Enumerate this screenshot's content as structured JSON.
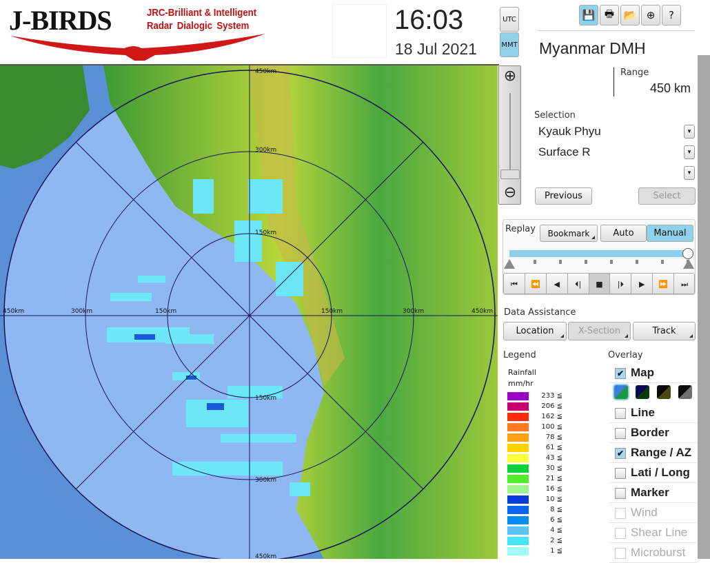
{
  "header": {
    "logo_text": "J-BIRDS",
    "logo_subtitle_1": "JRC-Brilliant & Intelligent",
    "logo_subtitle_2": "Radar Dialogic System",
    "time": "16:03",
    "date": "18 Jul 2021",
    "tz_options": [
      "UTC",
      "MMT"
    ],
    "tz_selected": "MMT"
  },
  "toolbar": [
    {
      "icon": "save-icon",
      "glyph": "💾"
    },
    {
      "icon": "print-icon",
      "glyph": "🖶"
    },
    {
      "icon": "folder-icon",
      "glyph": "📂"
    },
    {
      "icon": "add-window-icon",
      "glyph": "⊕"
    },
    {
      "icon": "help-icon",
      "glyph": "?"
    }
  ],
  "site": "Myanmar DMH",
  "range": {
    "label": "Range",
    "value": "450 km"
  },
  "selection": {
    "label": "Selection",
    "station": "Kyauk Phyu",
    "product": "Surface R",
    "third": "",
    "previous": "Previous",
    "select": "Select"
  },
  "replay": {
    "label": "Replay",
    "bookmark": "Bookmark",
    "auto": "Auto",
    "manual": "Manual",
    "mode": "Manual",
    "controls": [
      "first-icon",
      "fast-back-icon",
      "back-icon",
      "step-back-icon",
      "stop-icon",
      "step-forward-icon",
      "play-icon",
      "fast-forward-icon",
      "last-icon"
    ],
    "glyphs": [
      "⏮",
      "⏪",
      "◀",
      "⏴|",
      "■",
      "|⏵",
      "▶",
      "⏩",
      "⏭"
    ],
    "position": 1.0
  },
  "assist": {
    "label": "Data Assistance",
    "location": "Location",
    "xsection": "X-Section",
    "track": "Track"
  },
  "legend": {
    "label": "Legend",
    "title_1": "Rainfall",
    "title_2": "mm/hr",
    "items": [
      {
        "v": "233 ≦",
        "c": "#9a00c8"
      },
      {
        "v": "206 ≦",
        "c": "#c8006e"
      },
      {
        "v": "162 ≦",
        "c": "#ff2a0a"
      },
      {
        "v": "100 ≦",
        "c": "#ff7a1e"
      },
      {
        "v": "78 ≦",
        "c": "#ffa012"
      },
      {
        "v": "61 ≦",
        "c": "#ffd200"
      },
      {
        "v": "43 ≦",
        "c": "#faff3c"
      },
      {
        "v": "30 ≦",
        "c": "#14d23c"
      },
      {
        "v": "21 ≦",
        "c": "#50f028"
      },
      {
        "v": "16 ≦",
        "c": "#a0f58c"
      },
      {
        "v": "10 ≦",
        "c": "#0a3cdc"
      },
      {
        "v": "8 ≦",
        "c": "#0a64f0"
      },
      {
        "v": "6 ≦",
        "c": "#0a8cf5"
      },
      {
        "v": "4 ≦",
        "c": "#5ac3f5"
      },
      {
        "v": "2 ≦",
        "c": "#46e6fa"
      },
      {
        "v": "1 ≦",
        "c": "#a0fafa"
      }
    ]
  },
  "overlay": {
    "label": "Overlay",
    "items": [
      {
        "t": "Map",
        "on": true,
        "enabled": true
      },
      {
        "t": "Line",
        "on": false,
        "enabled": true
      },
      {
        "t": "Border",
        "on": false,
        "enabled": true
      },
      {
        "t": "Range / AZ",
        "on": true,
        "enabled": true
      },
      {
        "t": "Lati / Long",
        "on": false,
        "enabled": true
      },
      {
        "t": "Marker",
        "on": false,
        "enabled": true
      },
      {
        "t": "Wind",
        "on": false,
        "enabled": false
      },
      {
        "t": "Shear Line",
        "on": false,
        "enabled": false
      },
      {
        "t": "Microburst",
        "on": false,
        "enabled": false
      }
    ],
    "map_styles": [
      [
        "#3a7fd8",
        "#1a9a40"
      ],
      [
        "#0a0a5a",
        "#0a3a0a"
      ],
      [
        "#0a0a0a",
        "#4a4a10"
      ],
      [
        "#0a0a0a",
        "#707070"
      ]
    ]
  },
  "map": {
    "range_labels": {
      "r150": "150km",
      "r300": "300km",
      "r450": "450km"
    }
  }
}
